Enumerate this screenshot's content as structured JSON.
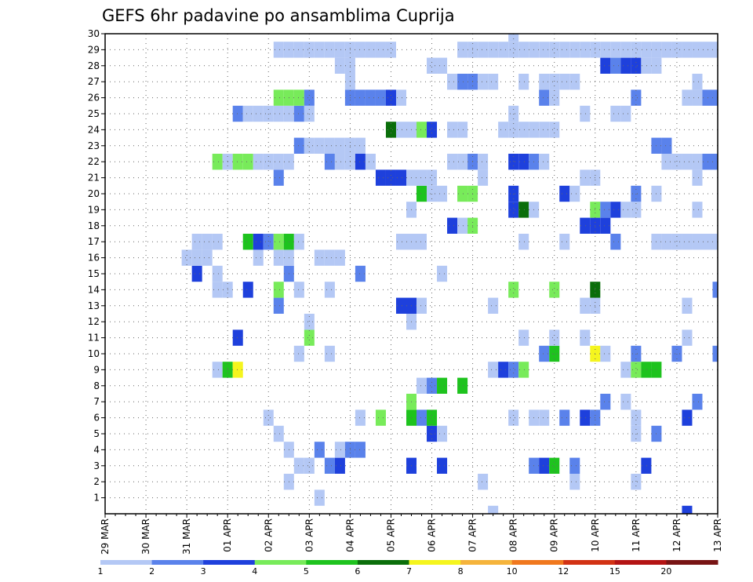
{
  "chart_data": {
    "type": "heatmap",
    "title": "GEFS 6hr padavine po ansamblima Cuprija",
    "xlabel": "",
    "ylabel": "",
    "x_tick_labels": [
      "29 MAR",
      "30 MAR",
      "31 MAR",
      "01 APR",
      "02 APR",
      "03 APR",
      "04 APR",
      "05 APR",
      "06 APR",
      "07 APR",
      "08 APR",
      "09 APR",
      "10 APR",
      "11 APR",
      "12 APR",
      "13 APR"
    ],
    "y_tick_labels": [
      "1",
      "2",
      "3",
      "4",
      "5",
      "6",
      "7",
      "8",
      "9",
      "10",
      "11",
      "12",
      "13",
      "14",
      "15",
      "16",
      "17",
      "18",
      "19",
      "20",
      "21",
      "22",
      "23",
      "24",
      "25",
      "26",
      "27",
      "28",
      "29",
      "30"
    ],
    "x_range": [
      0,
      60
    ],
    "y_range": [
      0,
      30
    ],
    "grid": true,
    "time_step_hours": 6,
    "legend": {
      "position": "bottom",
      "labels": [
        "1",
        "2",
        "3",
        "4",
        "5",
        "6",
        "7",
        "8",
        "10",
        "12",
        "15",
        "20"
      ],
      "colors": [
        "#b4c8f5",
        "#5a82eb",
        "#1e40dc",
        "#78eb5a",
        "#1ec31e",
        "#0a6e0a",
        "#f5f51e",
        "#f5b43c",
        "#f0781e",
        "#d23214",
        "#b41414",
        "#781414"
      ]
    },
    "cells": [
      [
        38,
        0,
        1
      ],
      [
        57,
        0,
        3
      ],
      [
        21,
        1,
        1
      ],
      [
        18,
        2,
        1
      ],
      [
        37,
        2,
        1
      ],
      [
        46,
        2,
        1
      ],
      [
        52,
        2,
        1
      ],
      [
        19,
        3,
        1
      ],
      [
        20,
        3,
        1
      ],
      [
        22,
        3,
        2
      ],
      [
        23,
        3,
        3
      ],
      [
        30,
        3,
        3
      ],
      [
        33,
        3,
        3
      ],
      [
        42,
        3,
        2
      ],
      [
        43,
        3,
        3
      ],
      [
        44,
        3,
        5
      ],
      [
        46,
        3,
        2
      ],
      [
        53,
        3,
        3
      ],
      [
        18,
        4,
        1
      ],
      [
        21,
        4,
        2
      ],
      [
        23,
        4,
        1
      ],
      [
        24,
        4,
        2
      ],
      [
        25,
        4,
        2
      ],
      [
        17,
        5,
        1
      ],
      [
        32,
        5,
        3
      ],
      [
        33,
        5,
        1
      ],
      [
        52,
        5,
        1
      ],
      [
        54,
        5,
        2
      ],
      [
        16,
        6,
        1
      ],
      [
        25,
        6,
        1
      ],
      [
        27,
        6,
        4
      ],
      [
        30,
        6,
        5
      ],
      [
        31,
        6,
        2
      ],
      [
        32,
        6,
        5
      ],
      [
        40,
        6,
        1
      ],
      [
        42,
        6,
        1
      ],
      [
        43,
        6,
        1
      ],
      [
        45,
        6,
        2
      ],
      [
        47,
        6,
        3
      ],
      [
        48,
        6,
        2
      ],
      [
        52,
        6,
        1
      ],
      [
        57,
        6,
        3
      ],
      [
        30,
        7,
        4
      ],
      [
        49,
        7,
        2
      ],
      [
        51,
        7,
        1
      ],
      [
        58,
        7,
        2
      ],
      [
        31,
        8,
        1
      ],
      [
        35,
        8,
        5
      ],
      [
        32,
        8,
        2
      ],
      [
        33,
        8,
        5
      ],
      [
        11,
        9,
        1
      ],
      [
        12,
        9,
        5
      ],
      [
        13,
        9,
        7
      ],
      [
        38,
        9,
        1
      ],
      [
        39,
        9,
        3
      ],
      [
        40,
        9,
        2
      ],
      [
        41,
        9,
        4
      ],
      [
        51,
        9,
        1
      ],
      [
        52,
        9,
        4
      ],
      [
        53,
        9,
        5
      ],
      [
        54,
        9,
        5
      ],
      [
        19,
        10,
        1
      ],
      [
        22,
        10,
        1
      ],
      [
        43,
        10,
        2
      ],
      [
        44,
        10,
        5
      ],
      [
        48,
        10,
        7
      ],
      [
        49,
        10,
        1
      ],
      [
        52,
        10,
        2
      ],
      [
        56,
        10,
        2
      ],
      [
        60,
        10,
        2
      ],
      [
        13,
        11,
        3
      ],
      [
        20,
        11,
        4
      ],
      [
        41,
        11,
        1
      ],
      [
        44,
        11,
        1
      ],
      [
        47,
        11,
        1
      ],
      [
        57,
        11,
        1
      ],
      [
        20,
        12,
        1
      ],
      [
        30,
        12,
        1
      ],
      [
        17,
        13,
        2
      ],
      [
        29,
        13,
        3
      ],
      [
        30,
        13,
        3
      ],
      [
        31,
        13,
        1
      ],
      [
        38,
        13,
        1
      ],
      [
        47,
        13,
        1
      ],
      [
        48,
        13,
        1
      ],
      [
        57,
        13,
        1
      ],
      [
        11,
        14,
        1
      ],
      [
        12,
        14,
        1
      ],
      [
        14,
        14,
        3
      ],
      [
        17,
        14,
        4
      ],
      [
        19,
        14,
        1
      ],
      [
        22,
        14,
        1
      ],
      [
        40,
        14,
        4
      ],
      [
        44,
        14,
        4
      ],
      [
        48,
        14,
        6
      ],
      [
        60,
        14,
        2
      ],
      [
        9,
        15,
        3
      ],
      [
        11,
        15,
        1
      ],
      [
        18,
        15,
        2
      ],
      [
        25,
        15,
        2
      ],
      [
        33,
        15,
        1
      ],
      [
        8,
        16,
        1
      ],
      [
        9,
        16,
        1
      ],
      [
        10,
        16,
        1
      ],
      [
        15,
        16,
        1
      ],
      [
        17,
        16,
        1
      ],
      [
        18,
        16,
        1
      ],
      [
        21,
        16,
        1
      ],
      [
        22,
        16,
        1
      ],
      [
        23,
        16,
        1
      ],
      [
        9,
        17,
        1
      ],
      [
        10,
        17,
        1
      ],
      [
        11,
        17,
        1
      ],
      [
        14,
        17,
        5
      ],
      [
        15,
        17,
        3
      ],
      [
        16,
        17,
        2
      ],
      [
        17,
        17,
        4
      ],
      [
        18,
        17,
        5
      ],
      [
        19,
        17,
        1
      ],
      [
        29,
        17,
        1
      ],
      [
        30,
        17,
        1
      ],
      [
        31,
        17,
        1
      ],
      [
        41,
        17,
        1
      ],
      [
        45,
        17,
        1
      ],
      [
        50,
        17,
        2
      ],
      [
        54,
        17,
        1
      ],
      [
        55,
        17,
        1
      ],
      [
        56,
        17,
        1
      ],
      [
        57,
        17,
        1
      ],
      [
        58,
        17,
        1
      ],
      [
        59,
        17,
        1
      ],
      [
        60,
        17,
        1
      ],
      [
        34,
        18,
        3
      ],
      [
        35,
        18,
        1
      ],
      [
        36,
        18,
        4
      ],
      [
        47,
        18,
        3
      ],
      [
        48,
        18,
        3
      ],
      [
        49,
        18,
        3
      ],
      [
        30,
        19,
        1
      ],
      [
        40,
        19,
        3
      ],
      [
        41,
        19,
        6
      ],
      [
        42,
        19,
        1
      ],
      [
        48,
        19,
        4
      ],
      [
        49,
        19,
        2
      ],
      [
        50,
        19,
        3
      ],
      [
        51,
        19,
        1
      ],
      [
        52,
        19,
        1
      ],
      [
        58,
        19,
        1
      ],
      [
        31,
        20,
        5
      ],
      [
        32,
        20,
        1
      ],
      [
        33,
        20,
        1
      ],
      [
        35,
        20,
        4
      ],
      [
        36,
        20,
        4
      ],
      [
        40,
        20,
        3
      ],
      [
        45,
        20,
        3
      ],
      [
        46,
        20,
        1
      ],
      [
        52,
        20,
        2
      ],
      [
        54,
        20,
        1
      ],
      [
        17,
        21,
        2
      ],
      [
        27,
        21,
        3
      ],
      [
        28,
        21,
        3
      ],
      [
        29,
        21,
        3
      ],
      [
        30,
        21,
        1
      ],
      [
        31,
        21,
        1
      ],
      [
        32,
        21,
        1
      ],
      [
        37,
        21,
        1
      ],
      [
        47,
        21,
        1
      ],
      [
        48,
        21,
        1
      ],
      [
        58,
        21,
        1
      ],
      [
        11,
        22,
        4
      ],
      [
        12,
        22,
        1
      ],
      [
        13,
        22,
        4
      ],
      [
        14,
        22,
        4
      ],
      [
        15,
        22,
        1
      ],
      [
        16,
        22,
        1
      ],
      [
        17,
        22,
        1
      ],
      [
        18,
        22,
        1
      ],
      [
        22,
        22,
        2
      ],
      [
        23,
        22,
        1
      ],
      [
        24,
        22,
        1
      ],
      [
        25,
        22,
        3
      ],
      [
        26,
        22,
        1
      ],
      [
        34,
        22,
        1
      ],
      [
        35,
        22,
        1
      ],
      [
        36,
        22,
        2
      ],
      [
        37,
        22,
        1
      ],
      [
        40,
        22,
        3
      ],
      [
        41,
        22,
        3
      ],
      [
        42,
        22,
        2
      ],
      [
        43,
        22,
        1
      ],
      [
        55,
        22,
        1
      ],
      [
        56,
        22,
        1
      ],
      [
        57,
        22,
        1
      ],
      [
        58,
        22,
        1
      ],
      [
        59,
        22,
        2
      ],
      [
        60,
        22,
        2
      ],
      [
        19,
        23,
        2
      ],
      [
        20,
        23,
        1
      ],
      [
        21,
        23,
        1
      ],
      [
        22,
        23,
        1
      ],
      [
        23,
        23,
        1
      ],
      [
        24,
        23,
        1
      ],
      [
        25,
        23,
        1
      ],
      [
        54,
        23,
        2
      ],
      [
        55,
        23,
        2
      ],
      [
        28,
        24,
        6
      ],
      [
        29,
        24,
        1
      ],
      [
        30,
        24,
        1
      ],
      [
        31,
        24,
        4
      ],
      [
        32,
        24,
        3
      ],
      [
        34,
        24,
        1
      ],
      [
        35,
        24,
        1
      ],
      [
        39,
        24,
        1
      ],
      [
        40,
        24,
        1
      ],
      [
        41,
        24,
        1
      ],
      [
        42,
        24,
        1
      ],
      [
        43,
        24,
        1
      ],
      [
        44,
        24,
        1
      ],
      [
        13,
        25,
        2
      ],
      [
        14,
        25,
        1
      ],
      [
        15,
        25,
        1
      ],
      [
        16,
        25,
        1
      ],
      [
        17,
        25,
        1
      ],
      [
        18,
        25,
        1
      ],
      [
        19,
        25,
        2
      ],
      [
        20,
        25,
        1
      ],
      [
        40,
        25,
        1
      ],
      [
        47,
        25,
        1
      ],
      [
        50,
        25,
        1
      ],
      [
        51,
        25,
        1
      ],
      [
        17,
        26,
        4
      ],
      [
        18,
        26,
        4
      ],
      [
        19,
        26,
        4
      ],
      [
        20,
        26,
        2
      ],
      [
        24,
        26,
        2
      ],
      [
        25,
        26,
        2
      ],
      [
        26,
        26,
        2
      ],
      [
        27,
        26,
        2
      ],
      [
        28,
        26,
        3
      ],
      [
        29,
        26,
        1
      ],
      [
        43,
        26,
        2
      ],
      [
        44,
        26,
        1
      ],
      [
        52,
        26,
        2
      ],
      [
        57,
        26,
        1
      ],
      [
        58,
        26,
        1
      ],
      [
        59,
        26,
        2
      ],
      [
        60,
        26,
        2
      ],
      [
        24,
        27,
        1
      ],
      [
        34,
        27,
        1
      ],
      [
        35,
        27,
        2
      ],
      [
        36,
        27,
        2
      ],
      [
        37,
        27,
        1
      ],
      [
        38,
        27,
        1
      ],
      [
        41,
        27,
        1
      ],
      [
        43,
        27,
        1
      ],
      [
        44,
        27,
        1
      ],
      [
        45,
        27,
        1
      ],
      [
        46,
        27,
        1
      ],
      [
        58,
        27,
        1
      ],
      [
        23,
        28,
        1
      ],
      [
        24,
        28,
        1
      ],
      [
        32,
        28,
        1
      ],
      [
        33,
        28,
        1
      ],
      [
        49,
        28,
        3
      ],
      [
        50,
        28,
        2
      ],
      [
        51,
        28,
        3
      ],
      [
        52,
        28,
        3
      ],
      [
        53,
        28,
        1
      ],
      [
        54,
        28,
        1
      ],
      [
        17,
        29,
        1
      ],
      [
        18,
        29,
        1
      ],
      [
        19,
        29,
        1
      ],
      [
        20,
        29,
        1
      ],
      [
        21,
        29,
        1
      ],
      [
        22,
        29,
        1
      ],
      [
        23,
        29,
        1
      ],
      [
        24,
        29,
        1
      ],
      [
        25,
        29,
        1
      ],
      [
        26,
        29,
        1
      ],
      [
        27,
        29,
        1
      ],
      [
        28,
        29,
        1
      ],
      [
        35,
        29,
        1
      ],
      [
        36,
        29,
        1
      ],
      [
        37,
        29,
        1
      ],
      [
        38,
        29,
        1
      ],
      [
        39,
        29,
        1
      ],
      [
        40,
        29,
        1
      ],
      [
        41,
        29,
        1
      ],
      [
        42,
        29,
        1
      ],
      [
        43,
        29,
        1
      ],
      [
        44,
        29,
        1
      ],
      [
        45,
        29,
        1
      ],
      [
        46,
        29,
        1
      ],
      [
        47,
        29,
        1
      ],
      [
        48,
        29,
        1
      ],
      [
        49,
        29,
        1
      ],
      [
        50,
        29,
        1
      ],
      [
        51,
        29,
        1
      ],
      [
        52,
        29,
        1
      ],
      [
        53,
        29,
        1
      ],
      [
        54,
        29,
        1
      ],
      [
        55,
        29,
        1
      ],
      [
        56,
        29,
        1
      ],
      [
        57,
        29,
        1
      ],
      [
        58,
        29,
        1
      ],
      [
        59,
        29,
        1
      ],
      [
        60,
        29,
        1
      ],
      [
        40,
        30,
        1
      ]
    ]
  }
}
